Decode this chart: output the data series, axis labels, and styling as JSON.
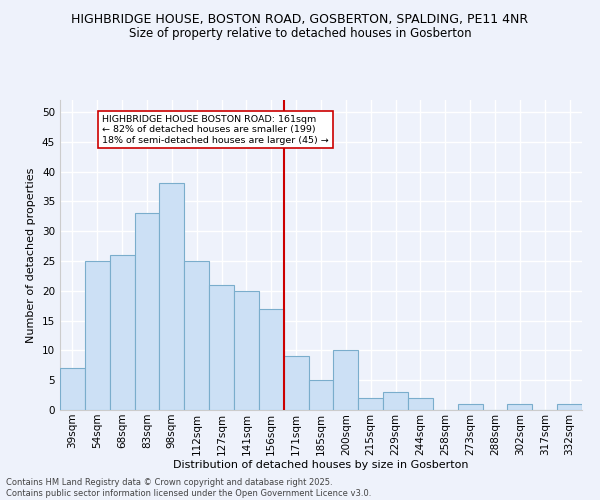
{
  "title": "HIGHBRIDGE HOUSE, BOSTON ROAD, GOSBERTON, SPALDING, PE11 4NR",
  "subtitle": "Size of property relative to detached houses in Gosberton",
  "xlabel": "Distribution of detached houses by size in Gosberton",
  "ylabel": "Number of detached properties",
  "categories": [
    "39sqm",
    "54sqm",
    "68sqm",
    "83sqm",
    "98sqm",
    "112sqm",
    "127sqm",
    "141sqm",
    "156sqm",
    "171sqm",
    "185sqm",
    "200sqm",
    "215sqm",
    "229sqm",
    "244sqm",
    "258sqm",
    "273sqm",
    "288sqm",
    "302sqm",
    "317sqm",
    "332sqm"
  ],
  "values": [
    7,
    25,
    26,
    33,
    38,
    25,
    21,
    20,
    17,
    9,
    5,
    10,
    2,
    3,
    2,
    0,
    1,
    0,
    1,
    0,
    1
  ],
  "bar_color": "#cce0f5",
  "bar_edge_color": "#7aadcc",
  "reference_line_x": 8.5,
  "reference_line_color": "#cc0000",
  "annotation_text": "HIGHBRIDGE HOUSE BOSTON ROAD: 161sqm\n← 82% of detached houses are smaller (199)\n18% of semi-detached houses are larger (45) →",
  "annotation_box_color": "#ffffff",
  "annotation_box_edge": "#cc0000",
  "ylim": [
    0,
    52
  ],
  "yticks": [
    0,
    5,
    10,
    15,
    20,
    25,
    30,
    35,
    40,
    45,
    50
  ],
  "background_color": "#eef2fb",
  "grid_color": "#ffffff",
  "footer_line1": "Contains HM Land Registry data © Crown copyright and database right 2025.",
  "footer_line2": "Contains public sector information licensed under the Open Government Licence v3.0."
}
